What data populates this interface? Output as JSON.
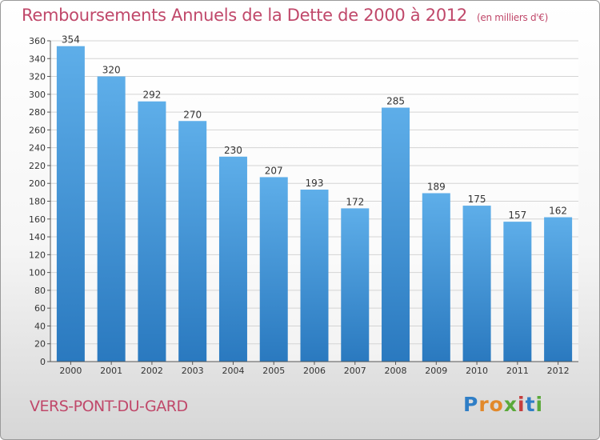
{
  "header": {
    "title": "Remboursements Annuels de la Dette de 2000 à 2012",
    "unit": "(en milliers d'€)"
  },
  "footer": {
    "city": "VERS-PONT-DU-GARD",
    "logo": "Proxiti"
  },
  "colors": {
    "title": "#c0486a",
    "bar_light": "#5eaee9",
    "bar_dark": "#2a79bf",
    "grid": "#d4d4d4"
  },
  "chart_data": {
    "type": "bar",
    "categories": [
      "2000",
      "2001",
      "2002",
      "2003",
      "2004",
      "2005",
      "2006",
      "2007",
      "2008",
      "2009",
      "2010",
      "2011",
      "2012"
    ],
    "values": [
      354,
      320,
      292,
      270,
      230,
      207,
      193,
      172,
      285,
      189,
      175,
      157,
      162
    ],
    "ylim": [
      0,
      360
    ],
    "yticks": [
      0,
      20,
      40,
      60,
      80,
      100,
      120,
      140,
      160,
      180,
      200,
      220,
      240,
      260,
      280,
      300,
      320,
      340,
      360
    ],
    "grid": true,
    "data_labels": true
  }
}
